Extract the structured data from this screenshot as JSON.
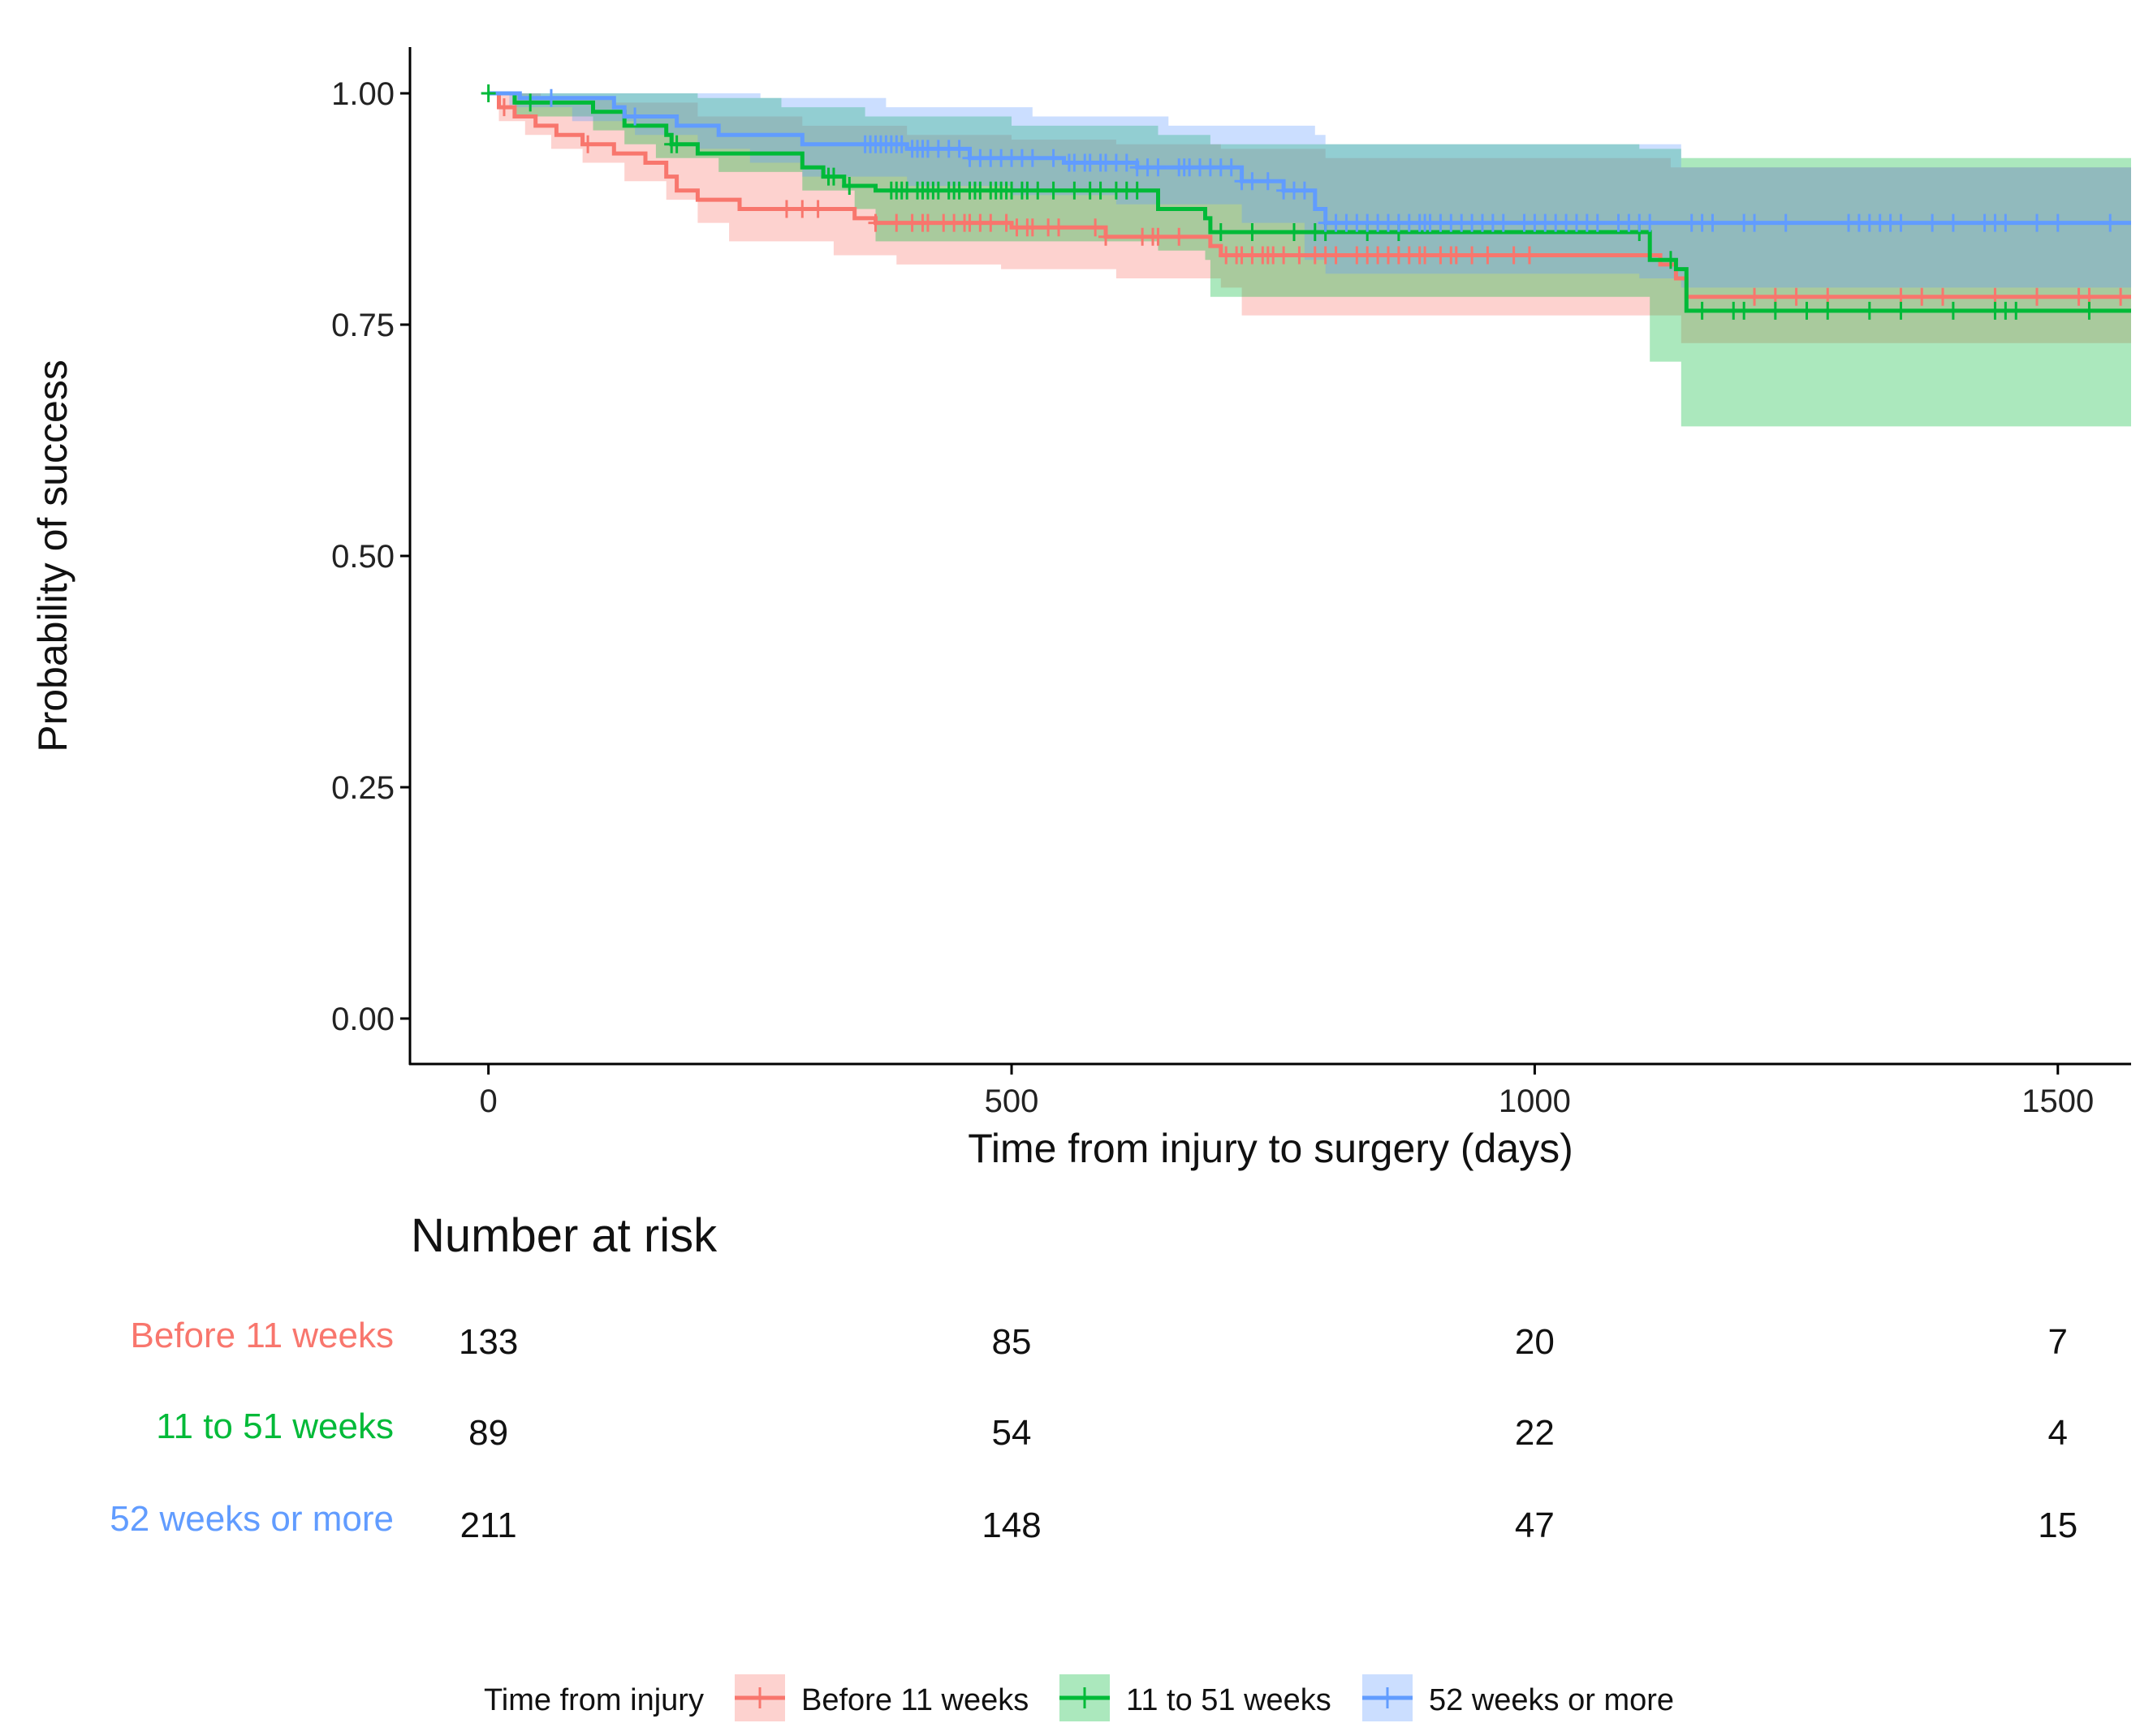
{
  "chart_data": {
    "type": "line",
    "subtype": "kaplan-meier",
    "title": "",
    "xlabel": "Time from injury to surgery (days)",
    "ylabel": "Probability of success",
    "xlim": [
      -75,
      1570
    ],
    "ylim": [
      -0.05,
      1.05
    ],
    "xticks": [
      0,
      500,
      1000,
      1500
    ],
    "xtick_labels": [
      "0",
      "500",
      "1000",
      "1500"
    ],
    "yticks": [
      0,
      0.25,
      0.5,
      0.75,
      1.0
    ],
    "ytick_labels": [
      "0.00",
      "0.25",
      "0.50",
      "0.75",
      "1.00"
    ],
    "grid": false,
    "legend": {
      "title": "Time from injury",
      "position": "bottom",
      "labels": [
        "Before 11 weeks",
        "11 to 51 weeks",
        "52 weeks or more"
      ]
    },
    "series": [
      {
        "name": "Before 11 weeks",
        "color": "#F8766D",
        "steps": [
          [
            0,
            1.0
          ],
          [
            10,
            0.985
          ],
          [
            25,
            0.975
          ],
          [
            45,
            0.965
          ],
          [
            65,
            0.955
          ],
          [
            90,
            0.945
          ],
          [
            120,
            0.935
          ],
          [
            150,
            0.925
          ],
          [
            170,
            0.91
          ],
          [
            180,
            0.895
          ],
          [
            200,
            0.885
          ],
          [
            240,
            0.875
          ],
          [
            350,
            0.865
          ],
          [
            370,
            0.86
          ],
          [
            500,
            0.855
          ],
          [
            590,
            0.845
          ],
          [
            690,
            0.835
          ],
          [
            700,
            0.825
          ],
          [
            1120,
            0.815
          ],
          [
            1135,
            0.8
          ],
          [
            1145,
            0.78
          ],
          [
            1570,
            0.78
          ]
        ],
        "upper": [
          [
            0,
            1.0
          ],
          [
            10,
            1.0
          ],
          [
            50,
            0.995
          ],
          [
            120,
            0.99
          ],
          [
            200,
            0.975
          ],
          [
            300,
            0.965
          ],
          [
            400,
            0.955
          ],
          [
            500,
            0.95
          ],
          [
            600,
            0.945
          ],
          [
            700,
            0.94
          ],
          [
            800,
            0.93
          ],
          [
            1130,
            0.92
          ],
          [
            1570,
            0.92
          ]
        ],
        "lower": [
          [
            0,
            1.0
          ],
          [
            10,
            0.97
          ],
          [
            35,
            0.955
          ],
          [
            60,
            0.94
          ],
          [
            90,
            0.925
          ],
          [
            130,
            0.905
          ],
          [
            170,
            0.885
          ],
          [
            200,
            0.86
          ],
          [
            230,
            0.84
          ],
          [
            330,
            0.825
          ],
          [
            390,
            0.815
          ],
          [
            490,
            0.81
          ],
          [
            600,
            0.8
          ],
          [
            700,
            0.79
          ],
          [
            720,
            0.76
          ],
          [
            1130,
            0.76
          ],
          [
            1140,
            0.73
          ],
          [
            1570,
            0.73
          ]
        ],
        "censor_x": [
          15,
          95,
          285,
          300,
          315,
          370,
          390,
          405,
          415,
          420,
          435,
          445,
          455,
          460,
          470,
          480,
          495,
          505,
          515,
          520,
          535,
          545,
          580,
          590,
          625,
          635,
          640,
          660,
          705,
          715,
          720,
          730,
          740,
          745,
          750,
          760,
          775,
          790,
          800,
          810,
          830,
          840,
          850,
          860,
          870,
          880,
          890,
          895,
          910,
          920,
          925,
          940,
          955,
          980,
          995,
          1210,
          1230,
          1250,
          1280,
          1350,
          1370,
          1390,
          1440,
          1480,
          1520,
          1530,
          1560
        ]
      },
      {
        "name": "11 to 51 weeks",
        "color": "#00BA38",
        "steps": [
          [
            0,
            1.0
          ],
          [
            25,
            0.99
          ],
          [
            100,
            0.98
          ],
          [
            130,
            0.965
          ],
          [
            170,
            0.955
          ],
          [
            175,
            0.945
          ],
          [
            200,
            0.935
          ],
          [
            300,
            0.92
          ],
          [
            320,
            0.91
          ],
          [
            340,
            0.9
          ],
          [
            370,
            0.895
          ],
          [
            640,
            0.875
          ],
          [
            685,
            0.865
          ],
          [
            690,
            0.85
          ],
          [
            1100,
            0.85
          ],
          [
            1110,
            0.82
          ],
          [
            1135,
            0.81
          ],
          [
            1145,
            0.765
          ],
          [
            1570,
            0.765
          ]
        ],
        "upper": [
          [
            0,
            1.0
          ],
          [
            120,
            1.0
          ],
          [
            200,
            0.995
          ],
          [
            280,
            0.985
          ],
          [
            360,
            0.975
          ],
          [
            500,
            0.965
          ],
          [
            640,
            0.955
          ],
          [
            690,
            0.945
          ],
          [
            1100,
            0.94
          ],
          [
            1140,
            0.93
          ],
          [
            1570,
            0.93
          ]
        ],
        "lower": [
          [
            0,
            1.0
          ],
          [
            25,
            0.975
          ],
          [
            100,
            0.96
          ],
          [
            130,
            0.945
          ],
          [
            160,
            0.93
          ],
          [
            220,
            0.915
          ],
          [
            300,
            0.895
          ],
          [
            350,
            0.875
          ],
          [
            370,
            0.84
          ],
          [
            640,
            0.83
          ],
          [
            685,
            0.82
          ],
          [
            690,
            0.78
          ],
          [
            1100,
            0.78
          ],
          [
            1110,
            0.71
          ],
          [
            1140,
            0.64
          ],
          [
            1570,
            0.64
          ]
        ],
        "censor_x": [
          0,
          40,
          175,
          180,
          325,
          330,
          345,
          385,
          390,
          395,
          400,
          410,
          415,
          420,
          425,
          430,
          440,
          445,
          450,
          460,
          465,
          470,
          480,
          485,
          490,
          495,
          500,
          510,
          515,
          525,
          540,
          560,
          575,
          585,
          600,
          610,
          620,
          700,
          730,
          770,
          790,
          800,
          840,
          870,
          1100,
          1130,
          1160,
          1190,
          1200,
          1230,
          1260,
          1280,
          1320,
          1350,
          1400,
          1440,
          1450,
          1460,
          1530
        ]
      },
      {
        "name": "52 weeks or more",
        "color": "#619CFF",
        "steps": [
          [
            0,
            1.0
          ],
          [
            30,
            0.995
          ],
          [
            120,
            0.985
          ],
          [
            130,
            0.975
          ],
          [
            180,
            0.965
          ],
          [
            220,
            0.955
          ],
          [
            300,
            0.945
          ],
          [
            400,
            0.94
          ],
          [
            460,
            0.93
          ],
          [
            550,
            0.925
          ],
          [
            620,
            0.92
          ],
          [
            720,
            0.905
          ],
          [
            760,
            0.895
          ],
          [
            790,
            0.875
          ],
          [
            800,
            0.86
          ],
          [
            1570,
            0.86
          ]
        ],
        "upper": [
          [
            0,
            1.0
          ],
          [
            180,
            1.0
          ],
          [
            260,
            0.995
          ],
          [
            380,
            0.985
          ],
          [
            520,
            0.975
          ],
          [
            650,
            0.965
          ],
          [
            790,
            0.955
          ],
          [
            800,
            0.945
          ],
          [
            1140,
            0.92
          ],
          [
            1570,
            0.92
          ]
        ],
        "lower": [
          [
            0,
            1.0
          ],
          [
            20,
            0.985
          ],
          [
            80,
            0.97
          ],
          [
            140,
            0.955
          ],
          [
            200,
            0.94
          ],
          [
            250,
            0.925
          ],
          [
            300,
            0.91
          ],
          [
            400,
            0.9
          ],
          [
            500,
            0.89
          ],
          [
            600,
            0.88
          ],
          [
            720,
            0.86
          ],
          [
            780,
            0.82
          ],
          [
            800,
            0.805
          ],
          [
            1100,
            0.8
          ],
          [
            1140,
            0.79
          ],
          [
            1570,
            0.79
          ]
        ],
        "censor_x": [
          60,
          140,
          360,
          365,
          370,
          375,
          380,
          385,
          390,
          395,
          405,
          410,
          415,
          420,
          430,
          440,
          450,
          460,
          470,
          480,
          490,
          500,
          510,
          520,
          540,
          555,
          560,
          570,
          575,
          585,
          590,
          600,
          610,
          620,
          630,
          640,
          660,
          665,
          670,
          680,
          690,
          700,
          710,
          720,
          730,
          745,
          760,
          770,
          780,
          800,
          810,
          820,
          830,
          840,
          850,
          860,
          870,
          880,
          890,
          895,
          900,
          910,
          920,
          930,
          940,
          950,
          960,
          970,
          990,
          1000,
          1010,
          1020,
          1030,
          1040,
          1050,
          1060,
          1080,
          1090,
          1100,
          1110,
          1150,
          1160,
          1170,
          1200,
          1210,
          1240,
          1300,
          1310,
          1320,
          1330,
          1340,
          1350,
          1380,
          1400,
          1430,
          1440,
          1450,
          1480,
          1500,
          1550
        ]
      }
    ],
    "risk_table": {
      "title": "Number at risk",
      "times": [
        0,
        500,
        1000,
        1500
      ],
      "rows": [
        {
          "label": "Before 11 weeks",
          "color": "#F8766D",
          "values": [
            "133",
            "85",
            "20",
            "7"
          ]
        },
        {
          "label": "11 to 51 weeks",
          "color": "#00BA38",
          "values": [
            "89",
            "54",
            "22",
            "4"
          ]
        },
        {
          "label": "52 weeks or more",
          "color": "#619CFF",
          "values": [
            "211",
            "148",
            "47",
            "15"
          ]
        }
      ]
    }
  }
}
